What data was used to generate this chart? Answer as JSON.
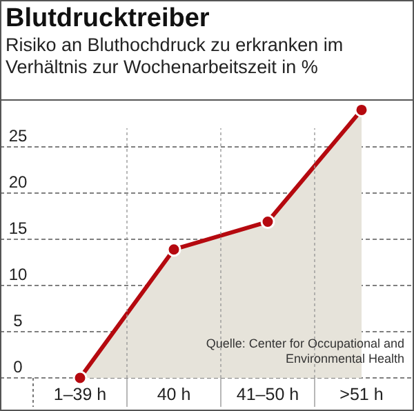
{
  "chart_data": {
    "type": "area",
    "title": "Blutdrucktreiber",
    "subtitle": "Risiko an Bluthochdruck zu erkranken im Verhältnis zur Wochenarbeitszeit in %",
    "categories": [
      "1–39 h",
      "40 h",
      "41–50 h",
      ">51 h"
    ],
    "series": [
      {
        "color": "#b5090f",
        "values": [
          0,
          13.9,
          16.9,
          29
        ]
      }
    ],
    "marker": "circle",
    "grid": true,
    "ylim": [
      0,
      30
    ],
    "yticks": [
      0,
      5,
      10,
      15,
      20,
      25
    ],
    "annotations": [
      "Quelle: Center for Occupational and Environmental Health"
    ]
  }
}
